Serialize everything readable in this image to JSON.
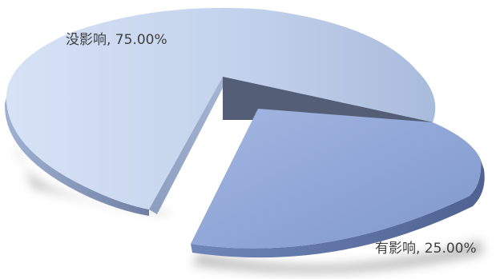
{
  "chart_data": {
    "type": "pie",
    "style": "3d-exploded",
    "title": "",
    "slices": [
      {
        "label": "没影响",
        "value": 75,
        "display": "没影响, 75.00%",
        "color": "#b4c6e6",
        "dark": "#7f90b0",
        "exploded": false
      },
      {
        "label": "有影响",
        "value": 25,
        "display": "有影响, 25.00%",
        "color": "#8ea5d8",
        "dark": "#5a6e9e",
        "exploded": true
      }
    ],
    "legend": "none",
    "data_labels": "outside"
  }
}
